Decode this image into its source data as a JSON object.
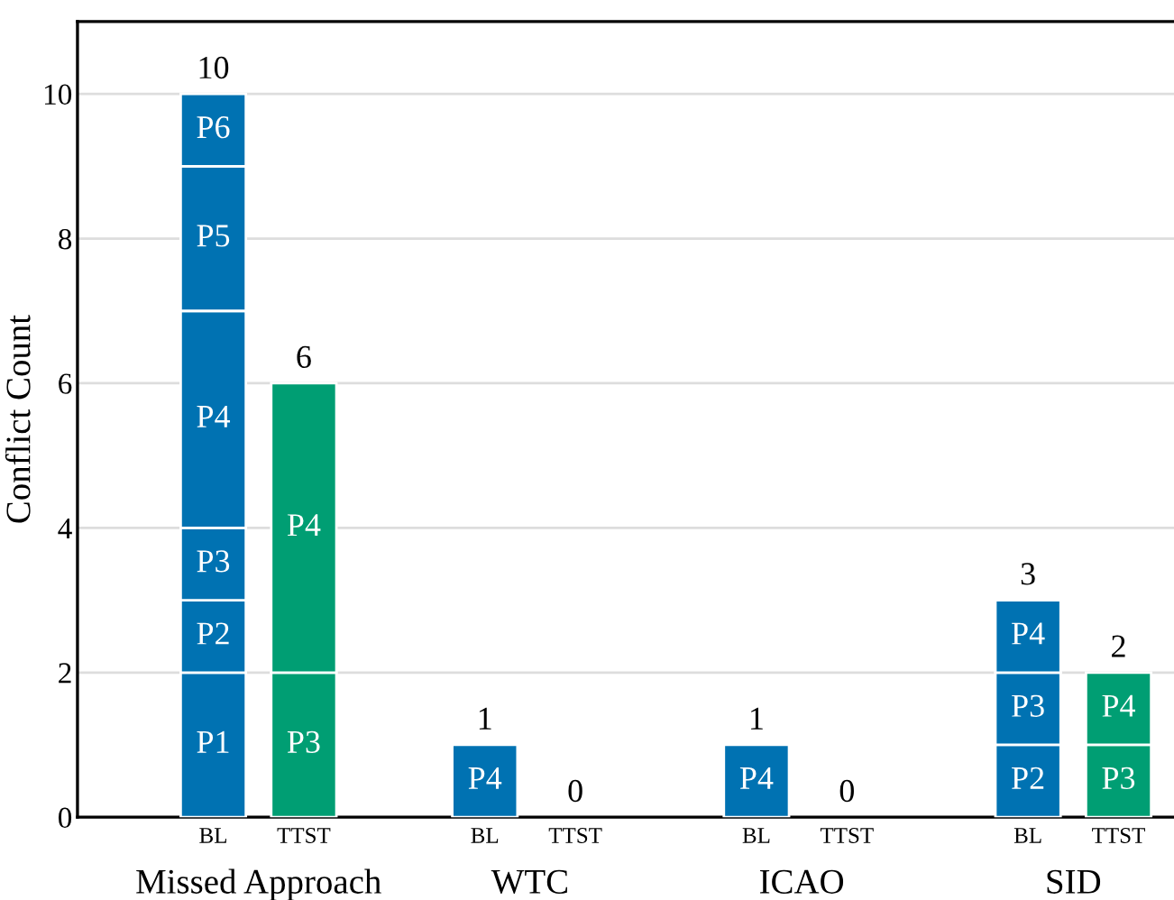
{
  "chart_data": {
    "type": "bar",
    "stacked": true,
    "ylabel": "Conflict Count",
    "categories": [
      "BL",
      "TTST",
      "BL",
      "TTST",
      "BL",
      "TTST",
      "BL",
      "TTST"
    ],
    "annotations": [
      "Missed Approach",
      "WTC",
      "ICAO",
      "SID"
    ],
    "series": [
      {
        "name": "P1",
        "colors": [
          "#0072b2",
          "#009e73",
          "#0072b2",
          "#009e73",
          "#0072b2",
          "#009e73",
          "#0072b2",
          "#009e73"
        ],
        "values": [
          2,
          null,
          null,
          null,
          null,
          null,
          null,
          null
        ]
      },
      {
        "name": "P2",
        "colors": [
          "#0072b2",
          "#009e73",
          "#0072b2",
          "#009e73",
          "#0072b2",
          "#009e73",
          "#0072b2",
          "#009e73"
        ],
        "values": [
          1,
          null,
          null,
          null,
          null,
          null,
          1,
          null
        ]
      },
      {
        "name": "P3",
        "colors": [
          "#0072b2",
          "#009e73",
          "#0072b2",
          "#009e73",
          "#0072b2",
          "#009e73",
          "#0072b2",
          "#009e73"
        ],
        "values": [
          1,
          2,
          null,
          null,
          null,
          null,
          1,
          1
        ]
      },
      {
        "name": "P4",
        "colors": [
          "#0072b2",
          "#009e73",
          "#0072b2",
          "#009e73",
          "#0072b2",
          "#009e73",
          "#0072b2",
          "#009e73"
        ],
        "values": [
          3,
          4,
          1,
          null,
          1,
          null,
          1,
          1
        ]
      },
      {
        "name": "P5",
        "colors": [
          "#0072b2",
          "#009e73",
          "#0072b2",
          "#009e73",
          "#0072b2",
          "#009e73",
          "#0072b2",
          "#009e73"
        ],
        "values": [
          2,
          null,
          null,
          null,
          null,
          null,
          null,
          null
        ]
      },
      {
        "name": "P6",
        "colors": [
          "#0072b2",
          "#009e73",
          "#0072b2",
          "#009e73",
          "#0072b2",
          "#009e73",
          "#0072b2",
          "#009e73"
        ],
        "values": [
          1,
          null,
          null,
          null,
          null,
          null,
          null,
          null
        ]
      }
    ],
    "totals": [
      "10",
      "6",
      "1",
      "0",
      "1",
      "0",
      "3",
      "2"
    ],
    "ylim": [
      0,
      11
    ],
    "yticks": [
      0,
      2,
      4,
      6,
      8,
      10
    ],
    "grid": "y",
    "legend": false
  }
}
